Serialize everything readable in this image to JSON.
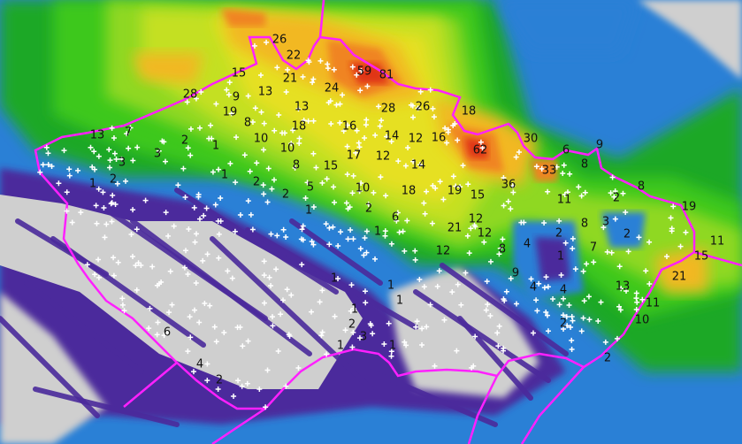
{
  "map": {
    "type": "precipitation radar with station totals",
    "colors": {
      "terrain": "#cfcfcf",
      "violet": "#4b2a9c",
      "blue": "#2530f0",
      "mid_blue": "#2a80d6",
      "dark_green": "#1aa828",
      "green": "#3cc81c",
      "light_green": "#8fd824",
      "yellow_green": "#c4e024",
      "yellow": "#e6e020",
      "orange_yellow": "#f2b824",
      "orange": "#f08424",
      "red": "#e03418",
      "border": "#ff20ff",
      "station_marker": "#ffffff"
    },
    "station_values": [
      26,
      22,
      15,
      21,
      59,
      81,
      28,
      9,
      13,
      24,
      13,
      28,
      26,
      18,
      19,
      8,
      18,
      16,
      13,
      7,
      2,
      1,
      10,
      14,
      12,
      16,
      30,
      6,
      9,
      10,
      62,
      3,
      3,
      17,
      12,
      8,
      15,
      14,
      33,
      8,
      1,
      2,
      1,
      2,
      5,
      2,
      10,
      18,
      19,
      15,
      36,
      11,
      8,
      2,
      1,
      2,
      6,
      12,
      19,
      8,
      3,
      1,
      21,
      12,
      2,
      2,
      4,
      1,
      8,
      7,
      12,
      11,
      15,
      1,
      1,
      9,
      4,
      4,
      13,
      21,
      1,
      1,
      2,
      11,
      6,
      10,
      2,
      3,
      1,
      1,
      4,
      2,
      2
    ]
  }
}
